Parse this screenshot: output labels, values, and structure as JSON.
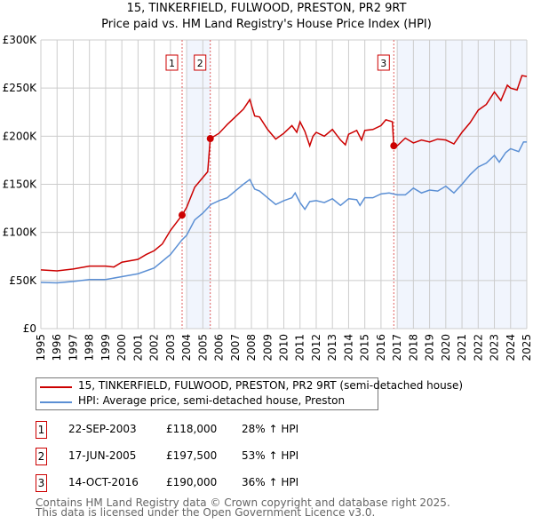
{
  "chart_data": {
    "type": "line",
    "title": "15, TINKERFIELD, FULWOOD, PRESTON, PR2 9RT",
    "subtitle": "Price paid vs. HM Land Registry's House Price Index (HPI)",
    "xlim": [
      1995,
      2025
    ],
    "ylim": [
      0,
      300000
    ],
    "yticks": [
      {
        "v": 0,
        "label": "£0"
      },
      {
        "v": 50000,
        "label": "£50K"
      },
      {
        "v": 100000,
        "label": "£100K"
      },
      {
        "v": 150000,
        "label": "£150K"
      },
      {
        "v": 200000,
        "label": "£200K"
      },
      {
        "v": 250000,
        "label": "£250K"
      },
      {
        "v": 300000,
        "label": "£300K"
      }
    ],
    "xticks": [
      "1995",
      "1996",
      "1997",
      "1998",
      "1999",
      "2000",
      "2001",
      "2002",
      "2003",
      "2004",
      "2005",
      "2006",
      "2007",
      "2008",
      "2009",
      "2010",
      "2011",
      "2012",
      "2013",
      "2014",
      "2015",
      "2016",
      "2017",
      "2018",
      "2019",
      "2020",
      "2021",
      "2022",
      "2023",
      "2024",
      "2025"
    ],
    "grid": true,
    "shaded_ranges": [
      [
        2004.0,
        2005.46
      ],
      [
        2017.0,
        2025.0
      ]
    ],
    "series": [
      {
        "name": "15, TINKERFIELD, FULWOOD, PRESTON, PR2 9RT (semi-detached house)",
        "color": "#cc0000",
        "points": [
          [
            1995,
            61
          ],
          [
            1996,
            60
          ],
          [
            1997,
            62
          ],
          [
            1998,
            65
          ],
          [
            1999,
            65
          ],
          [
            1999.5,
            64
          ],
          [
            2000,
            69
          ],
          [
            2001,
            72
          ],
          [
            2001.5,
            77
          ],
          [
            2002,
            81
          ],
          [
            2002.5,
            88
          ],
          [
            2003,
            102
          ],
          [
            2003.72,
            118
          ],
          [
            2004,
            126
          ],
          [
            2004.5,
            147
          ],
          [
            2005,
            157
          ],
          [
            2005.3,
            163
          ],
          [
            2005.46,
            197.5
          ],
          [
            2006,
            203
          ],
          [
            2006.5,
            212
          ],
          [
            2007,
            220
          ],
          [
            2007.5,
            228
          ],
          [
            2007.9,
            238
          ],
          [
            2008.2,
            221
          ],
          [
            2008.5,
            220
          ],
          [
            2009,
            207
          ],
          [
            2009.5,
            197
          ],
          [
            2010,
            203
          ],
          [
            2010.5,
            211
          ],
          [
            2010.8,
            204
          ],
          [
            2011,
            215
          ],
          [
            2011.3,
            205
          ],
          [
            2011.6,
            190
          ],
          [
            2011.8,
            200
          ],
          [
            2012,
            204
          ],
          [
            2012.5,
            200
          ],
          [
            2013,
            207
          ],
          [
            2013.5,
            196
          ],
          [
            2013.8,
            191
          ],
          [
            2014,
            202
          ],
          [
            2014.5,
            206
          ],
          [
            2014.8,
            196
          ],
          [
            2015,
            206
          ],
          [
            2015.5,
            207
          ],
          [
            2016,
            211
          ],
          [
            2016.3,
            217
          ],
          [
            2016.7,
            215
          ],
          [
            2016.79,
            190
          ],
          [
            2017,
            190
          ],
          [
            2017.5,
            198
          ],
          [
            2018,
            193
          ],
          [
            2018.5,
            196
          ],
          [
            2019,
            194
          ],
          [
            2019.5,
            197
          ],
          [
            2020,
            196
          ],
          [
            2020.5,
            192
          ],
          [
            2021,
            204
          ],
          [
            2021.5,
            214
          ],
          [
            2022,
            227
          ],
          [
            2022.5,
            233
          ],
          [
            2023,
            246
          ],
          [
            2023.4,
            237
          ],
          [
            2023.8,
            253
          ],
          [
            2024,
            250
          ],
          [
            2024.4,
            248
          ],
          [
            2024.7,
            263
          ],
          [
            2025,
            262
          ]
        ]
      },
      {
        "name": "HPI: Average price, semi-detached house, Preston",
        "color": "#5b8fd4",
        "points": [
          [
            1995,
            48
          ],
          [
            1996,
            47.5
          ],
          [
            1997,
            49
          ],
          [
            1998,
            51
          ],
          [
            1999,
            51
          ],
          [
            2000,
            54
          ],
          [
            2001,
            57
          ],
          [
            2002,
            63
          ],
          [
            2003,
            77
          ],
          [
            2003.7,
            92
          ],
          [
            2004,
            97
          ],
          [
            2004.5,
            113
          ],
          [
            2005,
            120
          ],
          [
            2005.5,
            129
          ],
          [
            2006,
            133
          ],
          [
            2006.5,
            136
          ],
          [
            2007,
            143
          ],
          [
            2007.5,
            150
          ],
          [
            2007.9,
            155
          ],
          [
            2008.2,
            145
          ],
          [
            2008.5,
            143
          ],
          [
            2009,
            136
          ],
          [
            2009.5,
            129
          ],
          [
            2010,
            133
          ],
          [
            2010.5,
            136
          ],
          [
            2010.7,
            141
          ],
          [
            2011,
            131
          ],
          [
            2011.3,
            124
          ],
          [
            2011.6,
            132
          ],
          [
            2012,
            133
          ],
          [
            2012.5,
            131
          ],
          [
            2013,
            135
          ],
          [
            2013.5,
            128
          ],
          [
            2014,
            135
          ],
          [
            2014.5,
            134
          ],
          [
            2014.7,
            128
          ],
          [
            2015,
            136
          ],
          [
            2015.5,
            136
          ],
          [
            2016,
            140
          ],
          [
            2016.5,
            141
          ],
          [
            2017,
            139
          ],
          [
            2017.5,
            139
          ],
          [
            2018,
            146
          ],
          [
            2018.5,
            141
          ],
          [
            2019,
            144
          ],
          [
            2019.5,
            143
          ],
          [
            2020,
            148
          ],
          [
            2020.5,
            141
          ],
          [
            2021,
            150
          ],
          [
            2021.5,
            160
          ],
          [
            2022,
            168
          ],
          [
            2022.5,
            172
          ],
          [
            2023,
            180
          ],
          [
            2023.3,
            173
          ],
          [
            2023.7,
            183
          ],
          [
            2024,
            187
          ],
          [
            2024.5,
            184
          ],
          [
            2024.8,
            194
          ],
          [
            2025,
            194
          ]
        ]
      }
    ],
    "sales": [
      {
        "n": "1",
        "x": 2003.72,
        "y": 118,
        "date": "22-SEP-2003",
        "price": "£118,000",
        "hpi": "28% ↑ HPI"
      },
      {
        "n": "2",
        "x": 2005.46,
        "y": 197.5,
        "date": "17-JUN-2005",
        "price": "£197,500",
        "hpi": "53% ↑ HPI"
      },
      {
        "n": "3",
        "x": 2016.79,
        "y": 190,
        "date": "14-OCT-2016",
        "price": "£190,000",
        "hpi": "36% ↑ HPI"
      }
    ],
    "y_units": "thousands GBP for points"
  },
  "legend": {
    "red": "15, TINKERFIELD, FULWOOD, PRESTON, PR2 9RT (semi-detached house)",
    "blue": "HPI: Average price, semi-detached house, Preston"
  },
  "footer": {
    "line1": "Contains HM Land Registry data © Crown copyright and database right 2025.",
    "line2": "This data is licensed under the Open Government Licence v3.0."
  }
}
